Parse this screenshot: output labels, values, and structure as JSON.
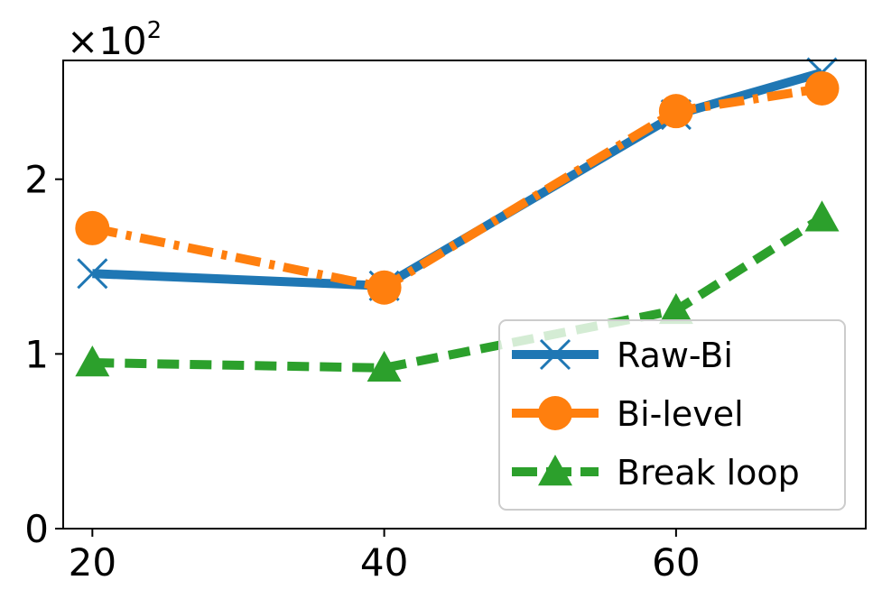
{
  "chart_data": {
    "type": "line",
    "title": "",
    "xlabel": "",
    "ylabel": "",
    "y_multiplier": {
      "base": "×10",
      "exponent": "2"
    },
    "x": [
      20,
      40,
      60,
      70
    ],
    "xlim": [
      18,
      73
    ],
    "ylim": [
      0,
      2.68
    ],
    "xticks": [
      20,
      40,
      60
    ],
    "yticks": [
      0,
      1,
      2
    ],
    "grid": false,
    "legend_position": "lower-right",
    "series": [
      {
        "name": "Raw-Bi",
        "values": [
          1.46,
          1.39,
          2.37,
          2.61
        ],
        "color": "#1f77b4",
        "line_style": "solid",
        "marker": "x"
      },
      {
        "name": "Bi-level",
        "values": [
          1.72,
          1.38,
          2.39,
          2.52
        ],
        "color": "#ff7f0e",
        "line_style": "dashdot",
        "marker": "circle"
      },
      {
        "name": "Break loop",
        "values": [
          0.95,
          0.92,
          1.25,
          1.78
        ],
        "color": "#2ca02c",
        "line_style": "dashed",
        "marker": "triangle"
      }
    ]
  }
}
